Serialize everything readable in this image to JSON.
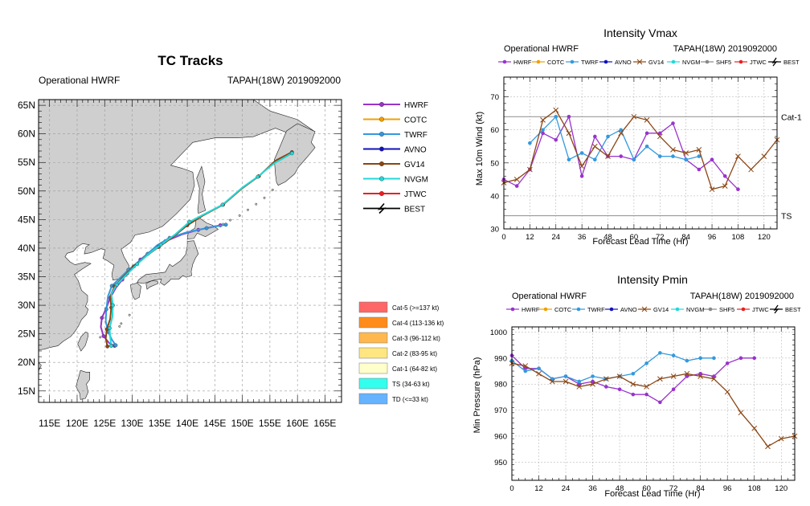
{
  "colors": {
    "hwrf": "#9933cc",
    "cotc": "#f0a000",
    "twrf": "#3399dd",
    "avno": "#1111bb",
    "gv14": "#8b4513",
    "nvgm": "#22d8d8",
    "shf5": "#888888",
    "jtwc": "#e82020",
    "best": "#000000",
    "land": "#cfcfcf",
    "ocean": "#ffffff",
    "grid": "#999999"
  },
  "chart_data": [
    {
      "type": "map",
      "title": "TC Tracks",
      "subtitle_left": "Operational HWRF",
      "subtitle_right": "TAPAH(18W) 2019092000",
      "lon_range": [
        113,
        168
      ],
      "lat_range": [
        13,
        66
      ],
      "lon_ticks": [
        "115E",
        "120E",
        "125E",
        "130E",
        "135E",
        "140E",
        "145E",
        "150E",
        "155E",
        "160E",
        "165E"
      ],
      "lon_values": [
        115,
        120,
        125,
        130,
        135,
        140,
        145,
        150,
        155,
        160,
        165
      ],
      "lat_ticks": [
        "15N",
        "20N",
        "25N",
        "30N",
        "35N",
        "40N",
        "45N",
        "50N",
        "55N",
        "60N",
        "65N"
      ],
      "lat_values": [
        15,
        20,
        25,
        30,
        35,
        40,
        45,
        50,
        55,
        60,
        65
      ],
      "legend": [
        "HWRF",
        "COTC",
        "TWRF",
        "AVNO",
        "GV14",
        "NVGM",
        "JTWC",
        "BEST"
      ],
      "intensity_legend": [
        {
          "label": "Cat-5 (>=137 kt)",
          "color": "#ff6666"
        },
        {
          "label": "Cat-4 (113-136 kt)",
          "color": "#ff8c1a"
        },
        {
          "label": "Cat-3 (96-112 kt)",
          "color": "#ffb84d"
        },
        {
          "label": "Cat-2 (83-95 kt)",
          "color": "#ffe680"
        },
        {
          "label": "Cat-1 (64-82 kt)",
          "color": "#ffffcc"
        },
        {
          "label": "TS (34-63 kt)",
          "color": "#33ffee"
        },
        {
          "label": "TD (<=33 kt)",
          "color": "#66b3ff"
        }
      ],
      "tracks": [
        {
          "name": "HWRF",
          "points": [
            [
              126.8,
              22.9
            ],
            [
              125.8,
              23.4
            ],
            [
              124.8,
              24.6
            ],
            [
              124.3,
              26.2
            ],
            [
              124.5,
              27.8
            ],
            [
              125.3,
              29.5
            ],
            [
              126.0,
              31.3
            ],
            [
              127.0,
              33.0
            ],
            [
              128.2,
              34.5
            ],
            [
              129.8,
              36.4
            ],
            [
              131.5,
              38.0
            ],
            [
              133.5,
              39.6
            ],
            [
              136.0,
              41.2
            ],
            [
              139.0,
              42.4
            ],
            [
              142.0,
              43.2
            ],
            [
              146.0,
              44.0
            ]
          ]
        },
        {
          "name": "TWRF",
          "points": [
            [
              127.0,
              23.0
            ],
            [
              126.3,
              24.0
            ],
            [
              125.6,
              25.4
            ],
            [
              125.2,
              27.2
            ],
            [
              125.3,
              29.3
            ],
            [
              125.6,
              31.6
            ],
            [
              126.3,
              33.4
            ],
            [
              127.6,
              34.6
            ],
            [
              129.3,
              36.2
            ],
            [
              131.0,
              37.5
            ],
            [
              132.8,
              39.0
            ],
            [
              134.5,
              40.5
            ],
            [
              136.8,
              41.8
            ],
            [
              140.0,
              42.8
            ],
            [
              143.5,
              43.5
            ],
            [
              147.0,
              44.1
            ]
          ]
        },
        {
          "name": "GV14",
          "points": [
            [
              125.5,
              22.8
            ],
            [
              125.2,
              24.2
            ],
            [
              125.4,
              25.8
            ],
            [
              126.0,
              27.6
            ],
            [
              126.2,
              29.6
            ],
            [
              126.0,
              31.6
            ],
            [
              126.8,
              33.3
            ],
            [
              128.2,
              34.8
            ],
            [
              130.3,
              36.8
            ],
            [
              132.5,
              38.6
            ],
            [
              134.8,
              40.2
            ],
            [
              137.2,
              41.8
            ],
            [
              140.0,
              44.0
            ],
            [
              143.0,
              45.8
            ],
            [
              146.5,
              47.6
            ],
            [
              150.0,
              50.5
            ],
            [
              153.0,
              52.6
            ],
            [
              156.0,
              55.3
            ],
            [
              159.0,
              56.8
            ]
          ]
        },
        {
          "name": "NVGM",
          "points": [
            [
              126.2,
              22.9
            ],
            [
              126.0,
              24.5
            ],
            [
              125.9,
              26.0
            ],
            [
              126.4,
              28.0
            ],
            [
              126.5,
              30.0
            ],
            [
              126.2,
              32.0
            ],
            [
              127.2,
              33.6
            ],
            [
              128.7,
              35.1
            ],
            [
              130.9,
              37.2
            ],
            [
              133.0,
              39.0
            ],
            [
              135.2,
              40.6
            ],
            [
              137.8,
              42.4
            ],
            [
              140.4,
              44.6
            ],
            [
              143.2,
              46.0
            ],
            [
              146.4,
              47.6
            ],
            [
              150.0,
              50.6
            ],
            [
              152.8,
              52.5
            ],
            [
              155.7,
              54.8
            ],
            [
              159.0,
              56.6
            ]
          ]
        }
      ]
    },
    {
      "type": "line",
      "title": "Intensity Vmax",
      "subtitle_left": "Operational HWRF",
      "subtitle_right": "TAPAH(18W) 2019092000",
      "xlabel": "Forecast Lead Time (Hr)",
      "ylabel": "Max 10m Wind (kt)",
      "xlim": [
        0,
        126
      ],
      "ylim": [
        30,
        76
      ],
      "xticks": [
        0,
        12,
        24,
        36,
        48,
        60,
        72,
        84,
        96,
        108,
        120
      ],
      "yticks": [
        30,
        40,
        50,
        60,
        70
      ],
      "ref_lines": [
        {
          "value": 64,
          "label": "Cat-1"
        },
        {
          "value": 34,
          "label": "TS"
        }
      ],
      "legend": [
        "HWRF",
        "COTC",
        "TWRF",
        "AVNO",
        "GV14",
        "NVGM",
        "SHF5",
        "JTWC",
        "BEST"
      ],
      "series": [
        {
          "name": "HWRF",
          "x": [
            0,
            6,
            12,
            18,
            24,
            30,
            36,
            42,
            48,
            54,
            60,
            66,
            72,
            78,
            84,
            90,
            96,
            102,
            108
          ],
          "y": [
            45,
            43,
            48,
            59,
            57,
            64,
            46,
            58,
            52,
            52,
            51,
            59,
            59,
            62,
            51,
            48,
            51,
            46,
            42
          ]
        },
        {
          "name": "TWRF",
          "x": [
            12,
            18,
            24,
            30,
            36,
            42,
            48,
            54,
            60,
            66,
            72,
            78,
            84,
            90
          ],
          "y": [
            56,
            60,
            64,
            51,
            53,
            51,
            58,
            60,
            51,
            55,
            52,
            52,
            51,
            52
          ]
        },
        {
          "name": "GV14",
          "x": [
            0,
            6,
            12,
            18,
            24,
            30,
            36,
            42,
            48,
            54,
            60,
            66,
            72,
            78,
            84,
            90,
            96,
            102,
            108,
            114,
            120,
            126
          ],
          "y": [
            44,
            45,
            48,
            63,
            66,
            59,
            49,
            55,
            52,
            59,
            64,
            63,
            58,
            54,
            53,
            54,
            42,
            43,
            52,
            48,
            52,
            57
          ]
        }
      ]
    },
    {
      "type": "line",
      "title": "Intensity Pmin",
      "subtitle_left": "Operational HWRF",
      "subtitle_right": "TAPAH(18W) 2019092000",
      "xlabel": "Forecast Lead Time (Hr)",
      "ylabel": "Min Pressure (hPa)",
      "xlim": [
        0,
        126
      ],
      "ylim": [
        943,
        1002
      ],
      "xticks": [
        0,
        12,
        24,
        36,
        48,
        60,
        72,
        84,
        96,
        108,
        120
      ],
      "yticks": [
        950,
        960,
        970,
        980,
        990,
        1000
      ],
      "legend": [
        "HWRF",
        "COTC",
        "TWRF",
        "AVNO",
        "GV14",
        "NVGM",
        "SHF5",
        "JTWC",
        "BEST"
      ],
      "series": [
        {
          "name": "HWRF",
          "x": [
            0,
            6,
            12,
            18,
            24,
            30,
            36,
            42,
            48,
            54,
            60,
            66,
            72,
            78,
            84,
            90,
            96,
            102,
            108
          ],
          "y": [
            991,
            986,
            986,
            982,
            983,
            980,
            981,
            979,
            978,
            976,
            976,
            973,
            978,
            983,
            984,
            983,
            988,
            990,
            990
          ]
        },
        {
          "name": "TWRF",
          "x": [
            0,
            6,
            12,
            18,
            24,
            30,
            36,
            42,
            48,
            54,
            60,
            66,
            72,
            78,
            84,
            90
          ],
          "y": [
            989,
            985,
            986,
            982,
            983,
            981,
            983,
            982,
            983,
            984,
            988,
            992,
            991,
            989,
            990,
            990
          ]
        },
        {
          "name": "GV14",
          "x": [
            0,
            6,
            12,
            18,
            24,
            30,
            36,
            42,
            48,
            54,
            60,
            66,
            72,
            78,
            84,
            90,
            96,
            102,
            108,
            114,
            120,
            126
          ],
          "y": [
            988,
            987,
            984,
            981,
            981,
            979,
            980,
            982,
            983,
            980,
            979,
            982,
            983,
            984,
            983,
            982,
            977,
            969,
            963,
            956,
            959,
            960
          ]
        }
      ]
    }
  ]
}
